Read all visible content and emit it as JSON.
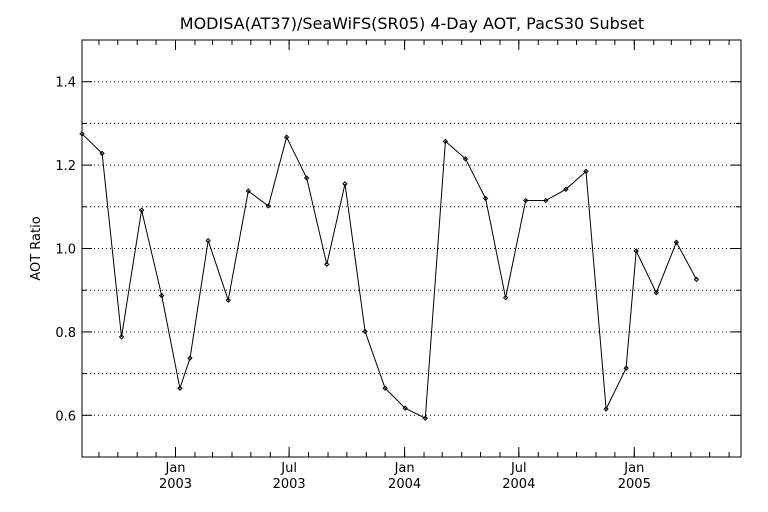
{
  "chart_data": {
    "type": "line",
    "title": "MODISA(AT37)/SeaWiFS(SR05) 4-Day AOT, PacS30 Subset",
    "xlabel": "",
    "ylabel": "AOT Ratio",
    "ylim": [
      0.5,
      1.5
    ],
    "xlim": [
      "2002-08-05",
      "2005-06-20"
    ],
    "grid": "horizontal-dotted",
    "y_ticks": [
      {
        "value": 0.6,
        "label": "0.6"
      },
      {
        "value": 0.8,
        "label": "0.8"
      },
      {
        "value": 1.0,
        "label": "1.0"
      },
      {
        "value": 1.2,
        "label": "1.2"
      },
      {
        "value": 1.4,
        "label": "1.4"
      }
    ],
    "x_ticks": [
      {
        "date": "2003-01-01",
        "month": "Jan",
        "year": "2003"
      },
      {
        "date": "2003-07-01",
        "month": "Jul",
        "year": "2003"
      },
      {
        "date": "2004-01-01",
        "month": "Jan",
        "year": "2004"
      },
      {
        "date": "2004-07-01",
        "month": "Jul",
        "year": "2004"
      },
      {
        "date": "2005-01-01",
        "month": "Jan",
        "year": "2005"
      }
    ],
    "series": [
      {
        "points": [
          {
            "x": "2002-08-05",
            "y": 1.275
          },
          {
            "x": "2002-09-06",
            "y": 1.228
          },
          {
            "x": "2002-10-07",
            "y": 0.788
          },
          {
            "x": "2002-11-08",
            "y": 1.092
          },
          {
            "x": "2002-12-10",
            "y": 0.887
          },
          {
            "x": "2003-01-08",
            "y": 0.665
          },
          {
            "x": "2003-01-24",
            "y": 0.737
          },
          {
            "x": "2003-02-22",
            "y": 1.019
          },
          {
            "x": "2003-03-26",
            "y": 0.876
          },
          {
            "x": "2003-04-27",
            "y": 1.138
          },
          {
            "x": "2003-05-29",
            "y": 1.102
          },
          {
            "x": "2003-06-27",
            "y": 1.267
          },
          {
            "x": "2003-07-29",
            "y": 1.169
          },
          {
            "x": "2003-08-30",
            "y": 0.962
          },
          {
            "x": "2003-09-28",
            "y": 1.155
          },
          {
            "x": "2003-10-30",
            "y": 0.801
          },
          {
            "x": "2003-12-01",
            "y": 0.665
          },
          {
            "x": "2004-01-02",
            "y": 0.617
          },
          {
            "x": "2004-02-03",
            "y": 0.593
          },
          {
            "x": "2004-03-06",
            "y": 1.257
          },
          {
            "x": "2004-04-07",
            "y": 1.215
          },
          {
            "x": "2004-05-09",
            "y": 1.12
          },
          {
            "x": "2004-06-10",
            "y": 0.882
          },
          {
            "x": "2004-07-12",
            "y": 1.115
          },
          {
            "x": "2004-08-13",
            "y": 1.115
          },
          {
            "x": "2004-09-14",
            "y": 1.142
          },
          {
            "x": "2004-10-16",
            "y": 1.185
          },
          {
            "x": "2004-11-17",
            "y": 0.615
          },
          {
            "x": "2004-12-19",
            "y": 0.713
          },
          {
            "x": "2005-01-04",
            "y": 0.994
          },
          {
            "x": "2005-02-05",
            "y": 0.894
          },
          {
            "x": "2005-03-09",
            "y": 1.015
          },
          {
            "x": "2005-04-10",
            "y": 0.926
          }
        ]
      }
    ]
  }
}
